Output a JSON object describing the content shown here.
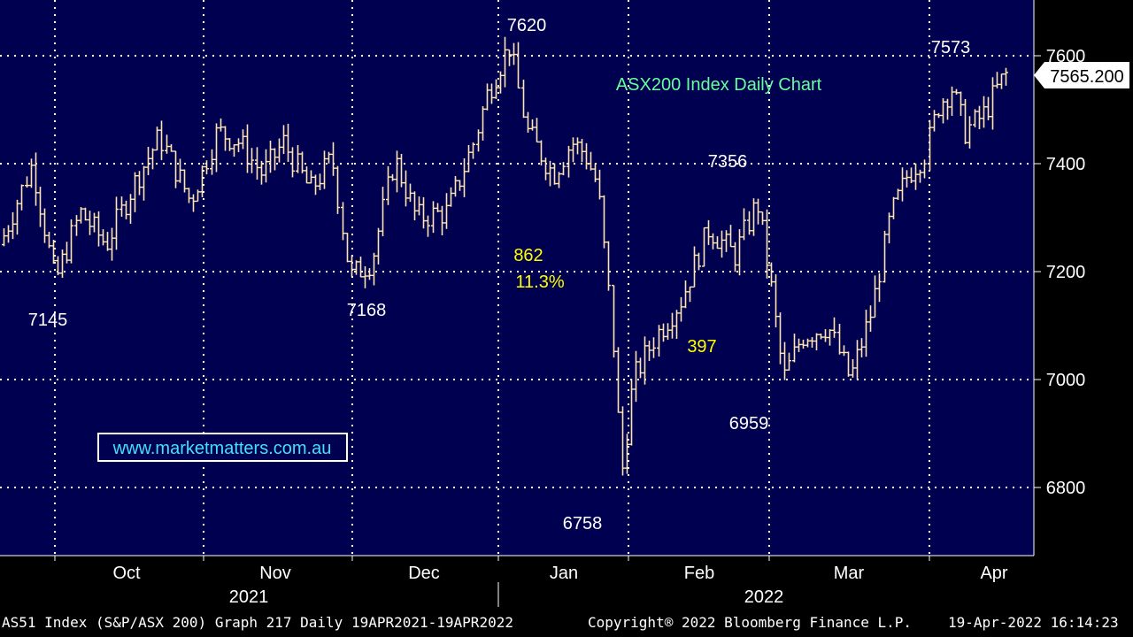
{
  "chart_data": {
    "type": "ohlc",
    "title": "ASX200 Index Daily Chart",
    "watermark": "www.marketmatters.com.au",
    "ylim": [
      6680,
      7720
    ],
    "yticks": [
      6800,
      7000,
      7200,
      7400,
      7600
    ],
    "last_price": "7565.200",
    "months": [
      "Oct",
      "Nov",
      "Dec",
      "Jan",
      "Feb",
      "Mar",
      "Apr"
    ],
    "years": [
      "2021",
      "2022"
    ],
    "annotations": [
      {
        "text": "7620",
        "color": "#ffffff"
      },
      {
        "text": "7573",
        "color": "#ffffff"
      },
      {
        "text": "7356",
        "color": "#ffffff"
      },
      {
        "text": "7145",
        "color": "#ffffff"
      },
      {
        "text": "7168",
        "color": "#ffffff"
      },
      {
        "text": "6758",
        "color": "#ffffff"
      },
      {
        "text": "6959",
        "color": "#ffffff"
      },
      {
        "text": "862",
        "color": "#ffff00"
      },
      {
        "text": "11.3%",
        "color": "#ffff00"
      },
      {
        "text": "397",
        "color": "#ffff00"
      }
    ],
    "price_path": [
      [
        "Sep 22",
        7250
      ],
      [
        "Sep 28",
        7400
      ],
      [
        "Oct 4",
        7180
      ],
      [
        "Oct 8",
        7310
      ],
      [
        "Oct 15",
        7250
      ],
      [
        "Oct 20",
        7360
      ],
      [
        "Oct 25",
        7450
      ],
      [
        "Oct 29",
        7330
      ],
      [
        "Nov 3",
        7460
      ],
      [
        "Nov 8",
        7440
      ],
      [
        "Nov 12",
        7380
      ],
      [
        "Nov 16",
        7440
      ],
      [
        "Nov 22",
        7350
      ],
      [
        "Nov 26",
        7410
      ],
      [
        "Nov 30",
        7190
      ],
      [
        "Dec 3",
        7220
      ],
      [
        "Dec 8",
        7410
      ],
      [
        "Dec 13",
        7300
      ],
      [
        "Dec 17",
        7310
      ],
      [
        "Dec 21",
        7440
      ],
      [
        "Dec 24",
        7530
      ],
      [
        "Dec 29",
        7620
      ],
      [
        "Jan 3",
        7460
      ],
      [
        "Jan 6",
        7380
      ],
      [
        "Jan 10",
        7440
      ],
      [
        "Jan 13",
        7420
      ],
      [
        "Jan 18",
        7360
      ],
      [
        "Jan 21",
        7120
      ],
      [
        "Jan 25",
        6960
      ],
      [
        "Jan 27",
        6800
      ],
      [
        "Jan 31",
        7000
      ],
      [
        "Feb 4",
        7080
      ],
      [
        "Feb 9",
        7150
      ],
      [
        "Feb 14",
        7280
      ],
      [
        "Feb 18",
        7230
      ],
      [
        "Feb 22",
        7330
      ],
      [
        "Feb 25",
        7180
      ],
      [
        "Feb 28",
        7000
      ],
      [
        "Mar 2",
        7080
      ],
      [
        "Mar 7",
        7100
      ],
      [
        "Mar 10",
        7000
      ],
      [
        "Mar 14",
        7130
      ],
      [
        "Mar 18",
        7300
      ],
      [
        "Mar 22",
        7380
      ],
      [
        "Mar 25",
        7420
      ],
      [
        "Mar 30",
        7510
      ],
      [
        "Apr 4",
        7540
      ],
      [
        "Apr 7",
        7460
      ],
      [
        "Apr 11",
        7490
      ],
      [
        "Apr 14",
        7565
      ]
    ]
  },
  "footer": {
    "left": "AS51 Index (S&P/ASX 200) Graph 217  Daily 19APR2021-19APR2022",
    "middle": "Copyright® 2022 Bloomberg Finance L.P.",
    "right": "19-Apr-2022 16:14:23"
  }
}
